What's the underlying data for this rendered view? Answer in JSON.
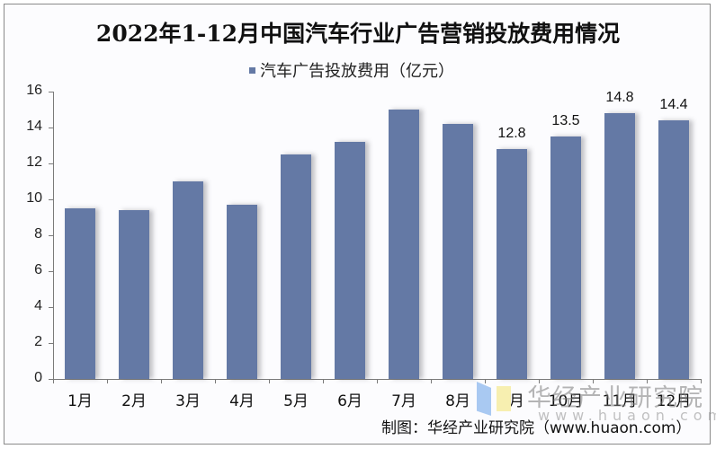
{
  "chart_data": {
    "type": "bar",
    "title": "2022年1-12月中国汽车行业广告营销投放费用情况",
    "legend": [
      "汽车广告投放费用（亿元）"
    ],
    "legend_position": "top",
    "categories": [
      "1月",
      "2月",
      "3月",
      "4月",
      "5月",
      "6月",
      "7月",
      "8月",
      "9月",
      "10月",
      "11月",
      "12月"
    ],
    "series": [
      {
        "name": "汽车广告投放费用（亿元）",
        "color": "#6479a5",
        "values": [
          9.5,
          9.4,
          11.0,
          9.7,
          12.5,
          13.2,
          15.0,
          14.2,
          12.8,
          13.5,
          14.8,
          14.4
        ]
      }
    ],
    "data_labels": [
      {
        "category": "9月",
        "text": "12.8"
      },
      {
        "category": "10月",
        "text": "13.5"
      },
      {
        "category": "11月",
        "text": "14.8"
      },
      {
        "category": "12月",
        "text": "14.4"
      }
    ],
    "xlabel": "",
    "ylabel": "",
    "ylim": [
      0,
      16
    ],
    "yticks": [
      "0",
      "2",
      "4",
      "6",
      "8",
      "10",
      "12",
      "14",
      "16"
    ],
    "grid": false
  },
  "source": "制图：华经产业研究院（www.huaon.com）",
  "watermark": {
    "text": "华经产业研究院",
    "url": "www.huaon.com"
  }
}
